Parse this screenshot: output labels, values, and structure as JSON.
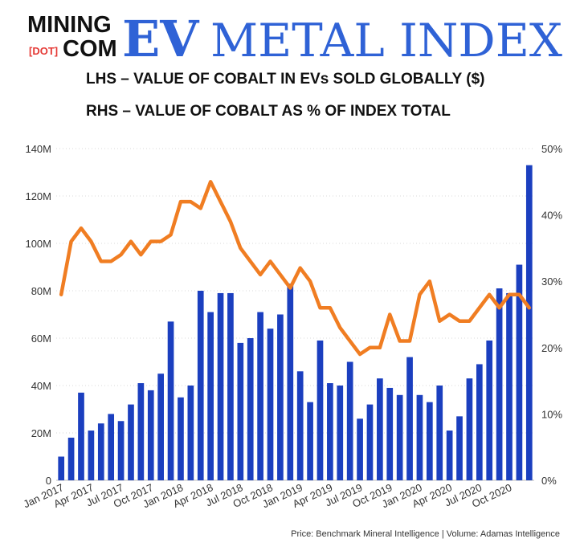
{
  "header": {
    "logo_text_top": "MINING",
    "logo_text_dot": "[DOT]",
    "logo_text_com": "COM",
    "logo_text_ev": "EV",
    "logo_text_index": "METAL INDEX",
    "subtitle1": "LHS – VALUE OF COBALT IN EVs SOLD GLOBALLY ($)",
    "subtitle2": "RHS – VALUE OF COBALT AS % OF INDEX TOTAL"
  },
  "footer": {
    "source": "Price: Benchmark Mineral Intelligence | Volume: Adamas Intelligence"
  },
  "colors": {
    "bar": "#1b3fbf",
    "line": "#f07d22",
    "logo_blue": "#2f62d6",
    "logo_dark": "#111111"
  },
  "chart_data": {
    "type": "bar+line",
    "left_ticks": [
      "0",
      "20M",
      "40M",
      "60M",
      "80M",
      "100M",
      "120M",
      "140M"
    ],
    "right_ticks": [
      "0%",
      "10%",
      "20%",
      "30%",
      "40%",
      "50%"
    ],
    "ylim_left": [
      0,
      140
    ],
    "ylim_right": [
      0,
      50
    ],
    "x_tick_labels": [
      "Jan 2017",
      "Apr 2017",
      "Jul 2017",
      "Oct 2017",
      "Jan 2018",
      "Apr 2018",
      "Jul 2018",
      "Oct 2018",
      "Jan 2019",
      "Apr 2019",
      "Jul 2019",
      "Oct 2019",
      "Jan 2020",
      "Apr 2020",
      "Jul 2020",
      "Oct 2020"
    ],
    "x_tick_every": 3,
    "months": [
      "Jan 2017",
      "Feb 2017",
      "Mar 2017",
      "Apr 2017",
      "May 2017",
      "Jun 2017",
      "Jul 2017",
      "Aug 2017",
      "Sep 2017",
      "Oct 2017",
      "Nov 2017",
      "Dec 2017",
      "Jan 2018",
      "Feb 2018",
      "Mar 2018",
      "Apr 2018",
      "May 2018",
      "Jun 2018",
      "Jul 2018",
      "Aug 2018",
      "Sep 2018",
      "Oct 2018",
      "Nov 2018",
      "Dec 2018",
      "Jan 2019",
      "Feb 2019",
      "Mar 2019",
      "Apr 2019",
      "May 2019",
      "Jun 2019",
      "Jul 2019",
      "Aug 2019",
      "Sep 2019",
      "Oct 2019",
      "Nov 2019",
      "Dec 2019",
      "Jan 2020",
      "Feb 2020",
      "Mar 2020",
      "Apr 2020",
      "May 2020",
      "Jun 2020",
      "Jul 2020",
      "Aug 2020",
      "Sep 2020",
      "Oct 2020",
      "Nov 2020",
      "Dec 2020"
    ],
    "series": [
      {
        "axis": "left",
        "kind": "bar",
        "values": [
          10,
          18,
          37,
          21,
          24,
          28,
          25,
          32,
          41,
          38,
          45,
          67,
          35,
          40,
          80,
          71,
          79,
          79,
          58,
          60,
          71,
          64,
          70,
          83,
          46,
          33,
          59,
          41,
          40,
          50,
          26,
          32,
          43,
          39,
          36,
          52,
          36,
          33,
          40,
          21,
          27,
          43,
          49,
          59,
          81,
          79,
          91,
          133
        ]
      },
      {
        "axis": "right",
        "kind": "line",
        "values": [
          28,
          36,
          38,
          36,
          33,
          33,
          34,
          36,
          34,
          36,
          36,
          37,
          42,
          42,
          41,
          45,
          42,
          39,
          35,
          33,
          31,
          33,
          31,
          29,
          32,
          30,
          26,
          26,
          23,
          21,
          19,
          20,
          20,
          25,
          21,
          21,
          28,
          30,
          24,
          25,
          24,
          24,
          26,
          28,
          26,
          28,
          28,
          26
        ]
      }
    ]
  }
}
